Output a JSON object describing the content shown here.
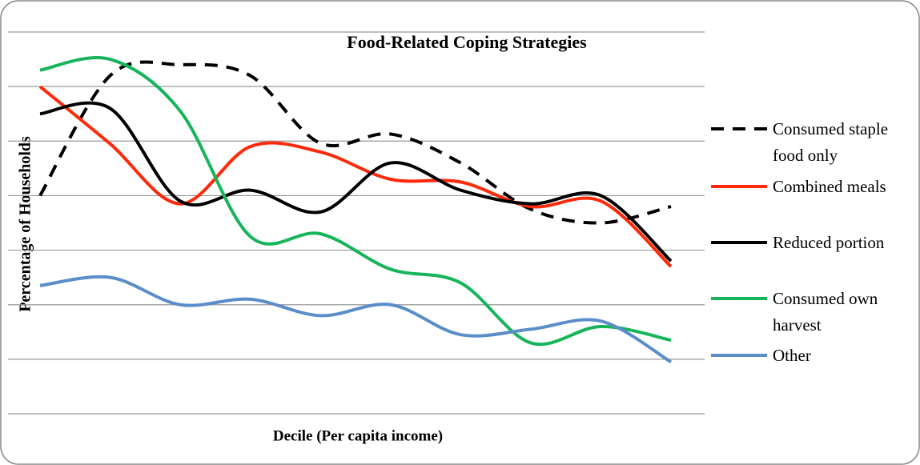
{
  "chart_data": {
    "type": "line",
    "title": "Food-Related Coping Strategies",
    "x_label": "Decile (Per capita income)",
    "y_label": "Percentage of Households",
    "categories": [
      null,
      null,
      null,
      null,
      null,
      null,
      null,
      null,
      null,
      null
    ],
    "ylim": [
      0,
      7
    ],
    "yticks": [
      0,
      1,
      2,
      3,
      4,
      5,
      6,
      7
    ],
    "grid": true,
    "smooth": true,
    "legend": "right",
    "series": [
      {
        "name": "Consumed staple food only",
        "color": "#000000",
        "dash": true,
        "values": [
          4.0,
          6.2,
          6.4,
          6.2,
          4.96,
          5.13,
          4.6,
          3.75,
          3.5,
          3.8
        ]
      },
      {
        "name": "Combined meals",
        "color": "#ff2a0a",
        "values": [
          6.0,
          4.95,
          3.85,
          4.9,
          4.8,
          4.3,
          4.25,
          3.8,
          3.9,
          2.7
        ]
      },
      {
        "name": "Reduced portion",
        "color": "#000000",
        "values": [
          5.5,
          5.6,
          3.9,
          4.1,
          3.7,
          4.6,
          4.1,
          3.85,
          4.0,
          2.8
        ]
      },
      {
        "name": "Consumed own harvest",
        "color": "#17b55a",
        "values": [
          6.3,
          6.5,
          5.55,
          3.25,
          3.3,
          2.65,
          2.4,
          1.3,
          1.6,
          1.35
        ]
      },
      {
        "name": "Other",
        "color": "#5b8ec9",
        "values": [
          2.35,
          2.5,
          2.0,
          2.1,
          1.8,
          2.0,
          1.45,
          1.55,
          1.7,
          0.95
        ]
      }
    ]
  }
}
